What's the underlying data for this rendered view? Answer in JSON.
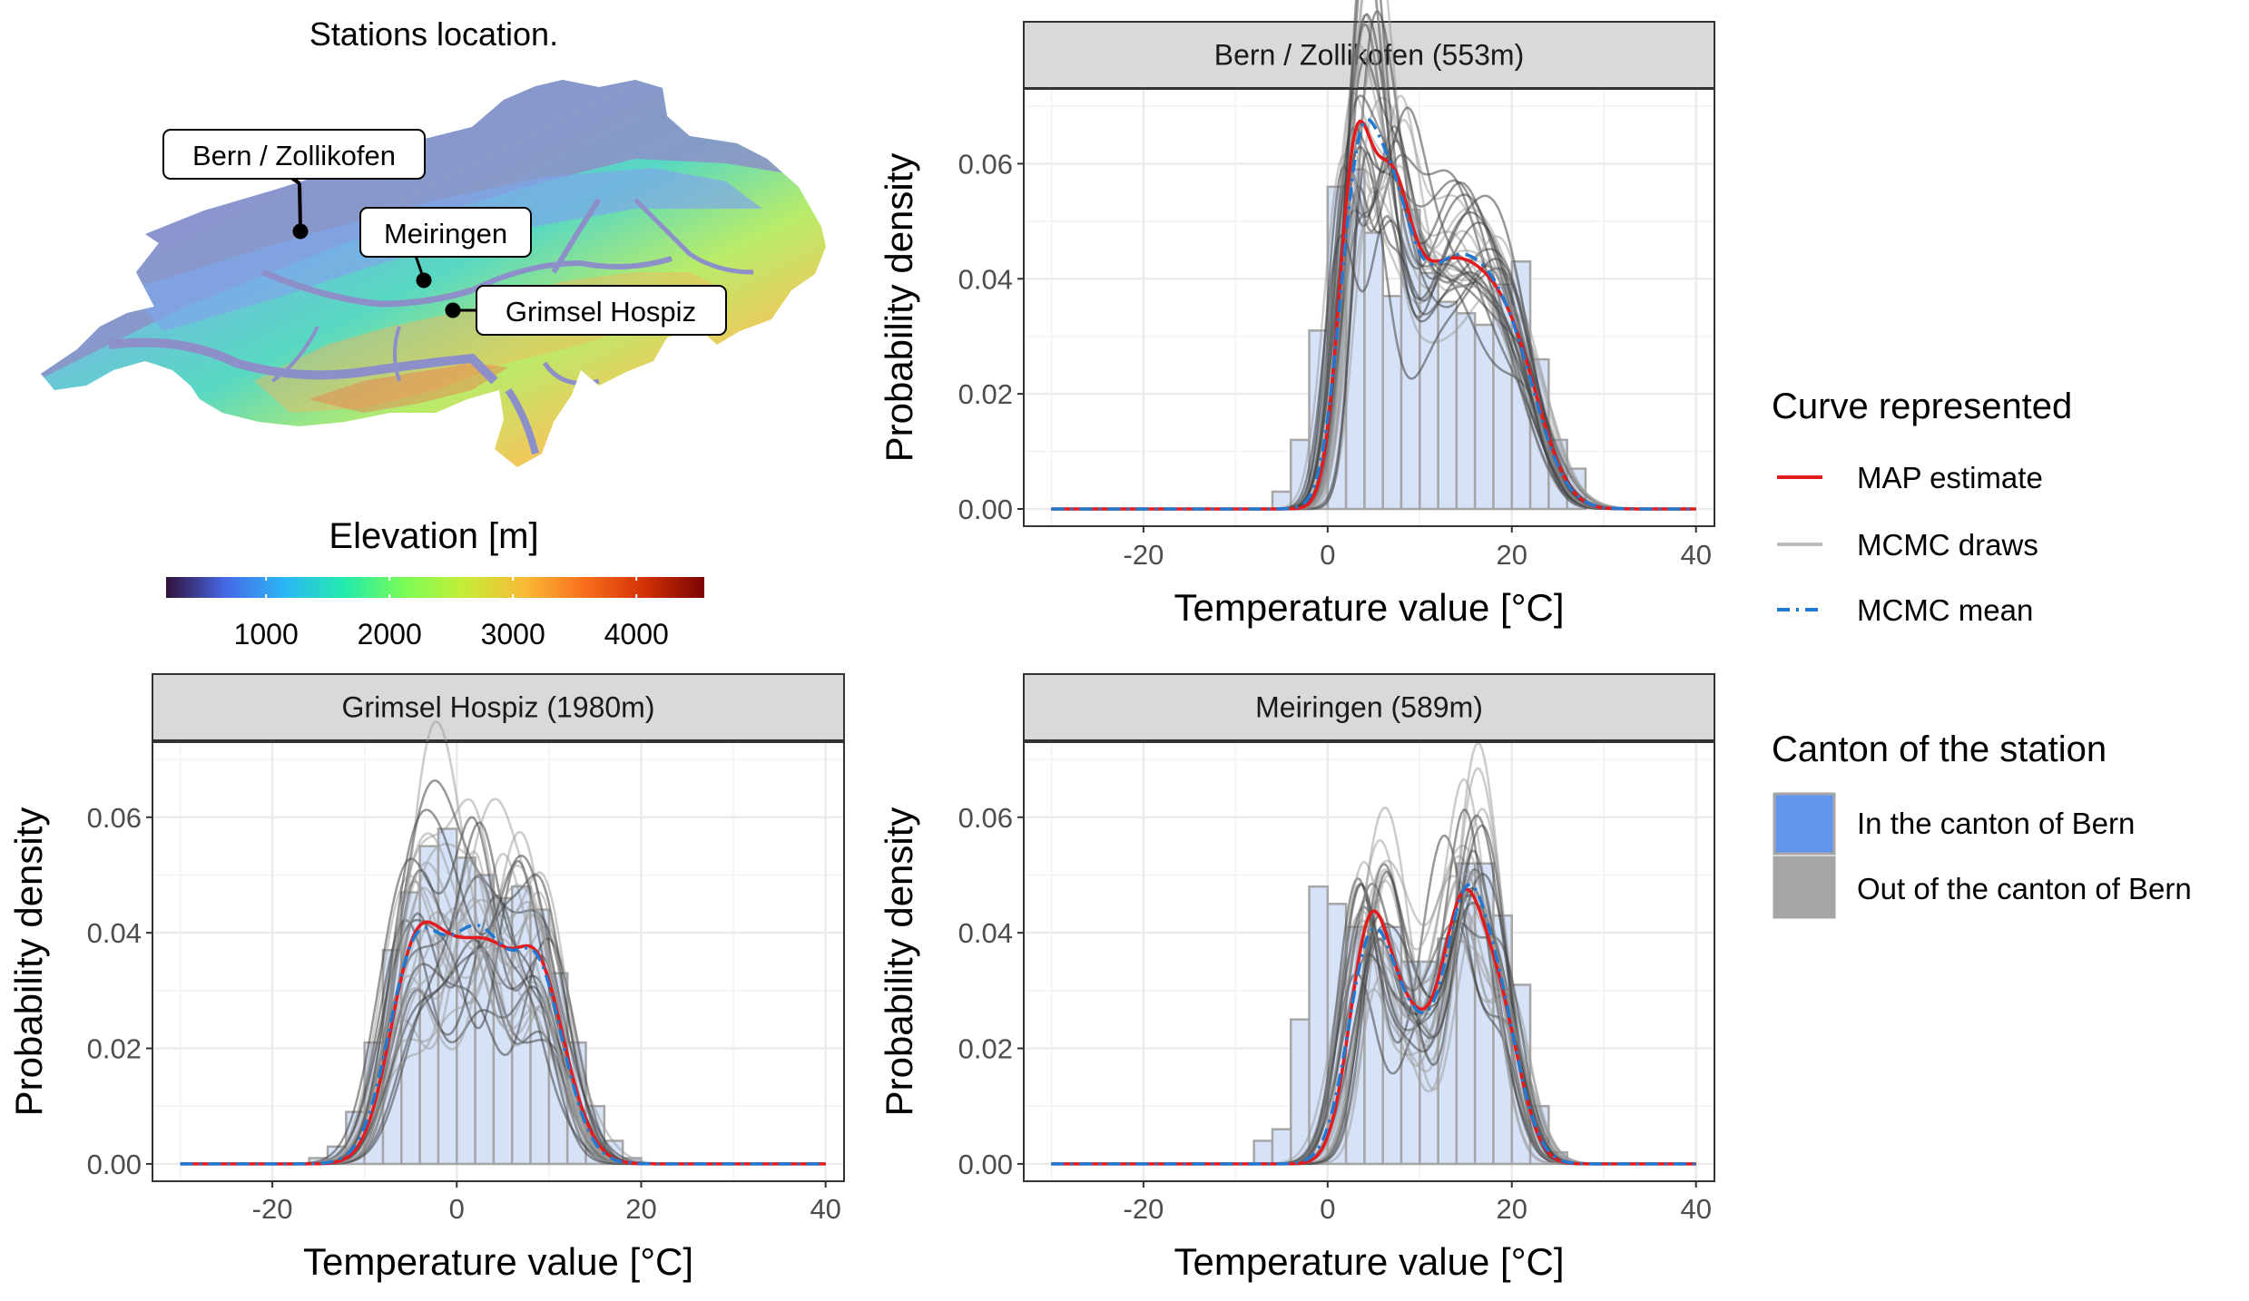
{
  "map": {
    "title": "Stations location.",
    "stations": [
      {
        "name": "Bern / Zollikofen",
        "elevation_m": 553
      },
      {
        "name": "Meiringen",
        "elevation_m": 589
      },
      {
        "name": "Grimsel Hospiz",
        "elevation_m": 1980
      }
    ],
    "colorbar": {
      "title": "Elevation [m]",
      "ticks": [
        "1000",
        "2000",
        "3000",
        "4000"
      ],
      "tick_values": [
        1000,
        2000,
        3000,
        4000
      ],
      "range": [
        190,
        4550
      ],
      "colors": [
        "#30123b",
        "#4669e7",
        "#2bb8f5",
        "#22ebab",
        "#7cfc55",
        "#c6ec37",
        "#f8ba35",
        "#f96e1c",
        "#d23105",
        "#7a0403"
      ]
    }
  },
  "legend": {
    "curve_title": "Curve represented",
    "curve_items": [
      {
        "label": "MAP estimate",
        "color": "#e41a1c",
        "style": "solid"
      },
      {
        "label": "MCMC draws",
        "color": "#bdbdbd",
        "style": "solid"
      },
      {
        "label": "MCMC mean",
        "color": "#1f78d1",
        "style": "dashed"
      }
    ],
    "canton_title": "Canton of the station",
    "canton_items": [
      {
        "label": "In the canton of Bern",
        "color": "#6495ed"
      },
      {
        "label": "Out of the canton of Bern",
        "color": "#a6a6a6"
      }
    ]
  },
  "chart_data": [
    {
      "type": "histogram+density",
      "title": "Bern / Zollikofen (553m)",
      "xlabel": "Temperature value [°C]",
      "ylabel": "Probability density",
      "xlim": [
        -33,
        42
      ],
      "ylim": [
        -0.003,
        0.073
      ],
      "xticks": [
        -20,
        0,
        20,
        40
      ],
      "yticks": [
        0.0,
        0.02,
        0.04,
        0.06
      ],
      "xtick_labels": [
        "-20",
        "0",
        "20",
        "40"
      ],
      "ytick_labels": [
        "0.00",
        "0.02",
        "0.04",
        "0.06"
      ],
      "canton": "In the canton of Bern",
      "hist_bins": [
        -8,
        -6,
        -4,
        -2,
        0,
        2,
        4,
        6,
        8,
        10,
        12,
        14,
        16,
        18,
        20,
        22,
        24,
        26,
        28
      ],
      "hist_values": [
        0.0,
        0.003,
        0.012,
        0.031,
        0.056,
        0.059,
        0.048,
        0.037,
        0.052,
        0.041,
        0.036,
        0.034,
        0.032,
        0.039,
        0.043,
        0.026,
        0.012,
        0.007
      ],
      "map_peaks": [
        [
          2.8,
          0.052,
          1.7
        ],
        [
          6.5,
          0.042,
          2.2
        ],
        [
          11,
          0.03,
          3.5
        ],
        [
          16.5,
          0.028,
          3.5
        ],
        [
          21,
          0.016,
          3.0
        ]
      ],
      "draw_seed": 11,
      "draw_count": 30,
      "draw_jitter": 0.14
    },
    {
      "type": "histogram+density",
      "title": "Grimsel Hospiz (1980m)",
      "xlabel": "Temperature value [°C]",
      "ylabel": "Probability density",
      "xlim": [
        -33,
        42
      ],
      "ylim": [
        -0.003,
        0.073
      ],
      "xticks": [
        -20,
        0,
        20,
        40
      ],
      "yticks": [
        0.0,
        0.02,
        0.04,
        0.06
      ],
      "xtick_labels": [
        "-20",
        "0",
        "20",
        "40"
      ],
      "ytick_labels": [
        "0.00",
        "0.02",
        "0.04",
        "0.06"
      ],
      "canton": "In the canton of Bern",
      "hist_bins": [
        -16,
        -14,
        -12,
        -10,
        -8,
        -6,
        -4,
        -2,
        0,
        2,
        4,
        6,
        8,
        10,
        12,
        14,
        16,
        18,
        20
      ],
      "hist_values": [
        0.001,
        0.003,
        0.009,
        0.021,
        0.037,
        0.047,
        0.055,
        0.058,
        0.053,
        0.05,
        0.046,
        0.048,
        0.044,
        0.033,
        0.021,
        0.01,
        0.004,
        0.001
      ],
      "map_peaks": [
        [
          -4.5,
          0.036,
          2.8
        ],
        [
          0.5,
          0.026,
          2.6
        ],
        [
          4.0,
          0.02,
          2.2
        ],
        [
          8.0,
          0.024,
          2.5
        ],
        [
          10.5,
          0.014,
          2.8
        ]
      ],
      "draw_seed": 23,
      "draw_count": 30,
      "draw_jitter": 0.32
    },
    {
      "type": "histogram+density",
      "title": "Meiringen (589m)",
      "xlabel": "Temperature value [°C]",
      "ylabel": "Probability density",
      "xlim": [
        -33,
        42
      ],
      "ylim": [
        -0.003,
        0.073
      ],
      "xticks": [
        -20,
        0,
        20,
        40
      ],
      "yticks": [
        0.0,
        0.02,
        0.04,
        0.06
      ],
      "xtick_labels": [
        "-20",
        "0",
        "20",
        "40"
      ],
      "ytick_labels": [
        "0.00",
        "0.02",
        "0.04",
        "0.06"
      ],
      "canton": "In the canton of Bern",
      "hist_bins": [
        -8,
        -6,
        -4,
        -2,
        0,
        2,
        4,
        6,
        8,
        10,
        12,
        14,
        16,
        18,
        20,
        22,
        24,
        26
      ],
      "hist_values": [
        0.004,
        0.006,
        0.025,
        0.048,
        0.045,
        0.041,
        0.039,
        0.041,
        0.035,
        0.035,
        0.039,
        0.052,
        0.052,
        0.043,
        0.031,
        0.01,
        0.002
      ],
      "map_peaks": [
        [
          4.5,
          0.038,
          2.2
        ],
        [
          9,
          0.022,
          2.6
        ],
        [
          14.5,
          0.038,
          2.2
        ],
        [
          18.5,
          0.026,
          2.4
        ]
      ],
      "draw_seed": 37,
      "draw_count": 30,
      "draw_jitter": 0.16
    }
  ]
}
